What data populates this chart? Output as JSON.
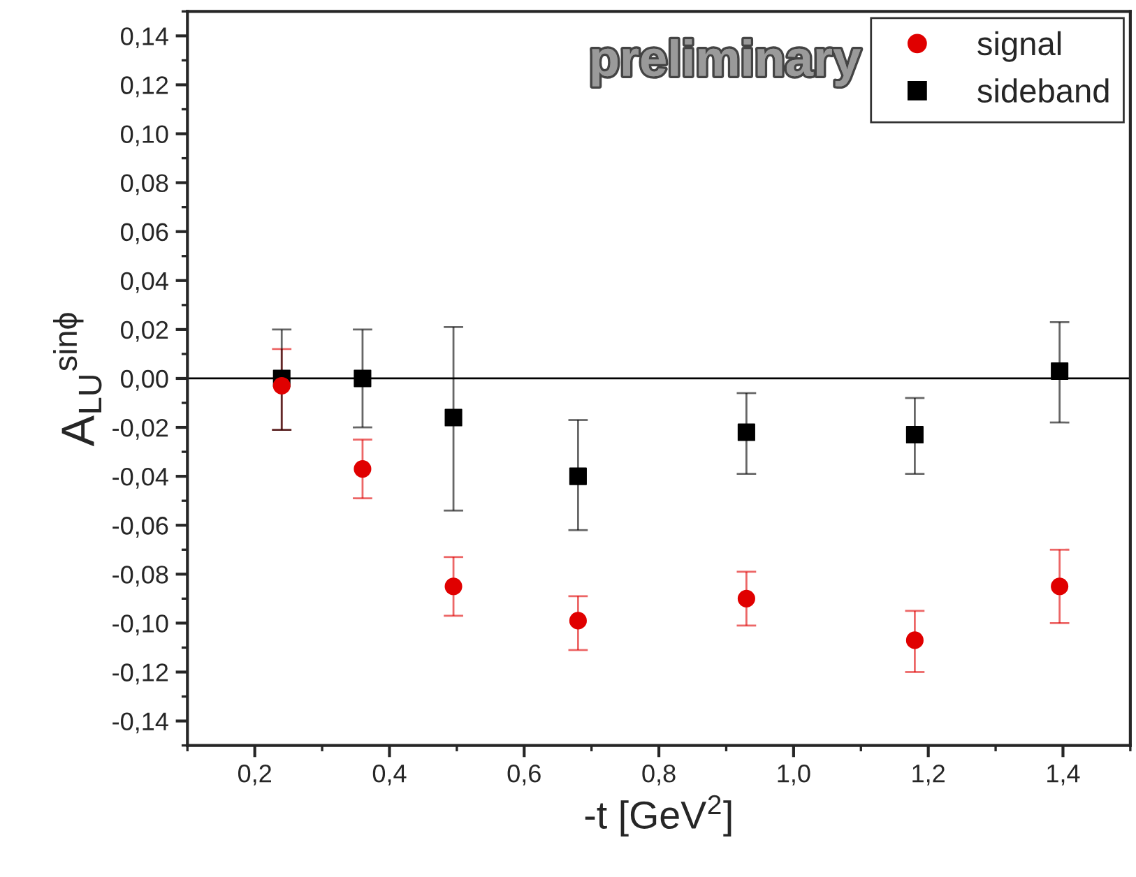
{
  "chart_data": {
    "type": "scatter",
    "xlabel": "-t [GeV$^{2}$]",
    "ylabel": "A$_{LU}$$^{sinϕ}$",
    "annotations": [
      "preliminary"
    ],
    "x": [
      0.24,
      0.36,
      0.495,
      0.68,
      0.93,
      1.18,
      1.395
    ],
    "series": [
      {
        "name": "signal",
        "color": "#e00000",
        "marker": "circle",
        "values": [
          -0.003,
          -0.037,
          -0.085,
          -0.099,
          -0.09,
          -0.107,
          -0.085
        ],
        "errors": [
          [
            -0.021,
            0.012
          ],
          [
            -0.049,
            -0.025
          ],
          [
            -0.097,
            -0.073
          ],
          [
            -0.111,
            -0.089
          ],
          [
            -0.101,
            -0.079
          ],
          [
            -0.12,
            -0.095
          ],
          [
            -0.1,
            -0.07
          ]
        ]
      },
      {
        "name": "sideband",
        "color": "#000000",
        "marker": "square",
        "values": [
          0.0,
          0.0,
          -0.016,
          -0.04,
          -0.022,
          -0.023,
          0.003
        ],
        "errors": [
          [
            -0.021,
            0.02
          ],
          [
            -0.02,
            0.02
          ],
          [
            -0.054,
            0.021
          ],
          [
            -0.062,
            -0.017
          ],
          [
            -0.039,
            -0.006
          ],
          [
            -0.039,
            -0.008
          ],
          [
            -0.018,
            0.023
          ]
        ]
      }
    ],
    "xlim": [
      0.1,
      1.5
    ],
    "xticks": [
      {
        "value": 0.2,
        "label": "0,2"
      },
      {
        "value": 0.4,
        "label": "0,4"
      },
      {
        "value": 0.6,
        "label": "0,6"
      },
      {
        "value": 0.8,
        "label": "0,8"
      },
      {
        "value": 1.0,
        "label": "1,0"
      },
      {
        "value": 1.2,
        "label": "1,2"
      },
      {
        "value": 1.4,
        "label": "1,4"
      }
    ],
    "ylim": [
      -0.15,
      0.15
    ],
    "yticks": [
      {
        "value": -0.14,
        "label": "-0,14"
      },
      {
        "value": -0.12,
        "label": "-0,12"
      },
      {
        "value": -0.1,
        "label": "-0,10"
      },
      {
        "value": -0.08,
        "label": "-0,08"
      },
      {
        "value": -0.06,
        "label": "-0,06"
      },
      {
        "value": -0.04,
        "label": "-0,04"
      },
      {
        "value": -0.02,
        "label": "-0,02"
      },
      {
        "value": 0.0,
        "label": "0,00"
      },
      {
        "value": 0.02,
        "label": "0,02"
      },
      {
        "value": 0.04,
        "label": "0,04"
      },
      {
        "value": 0.06,
        "label": "0,06"
      },
      {
        "value": 0.08,
        "label": "0,08"
      },
      {
        "value": 0.1,
        "label": "0,10"
      },
      {
        "value": 0.12,
        "label": "0,12"
      },
      {
        "value": 0.14,
        "label": "0,14"
      }
    ],
    "ref_lines": [
      {
        "axis": "y",
        "value": 0,
        "color": "#000000"
      }
    ],
    "grid": false,
    "legend": "top right"
  }
}
